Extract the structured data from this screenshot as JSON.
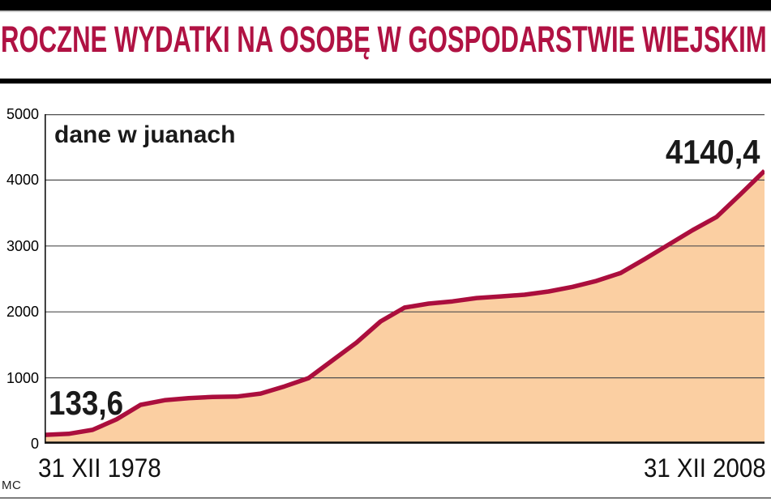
{
  "header": {
    "title": "ROCZNE WYDATKI NA OSOBĘ W GOSPODARSTWIE WIEJSKIM"
  },
  "chart": {
    "unit_note": "dane w juanach",
    "start_value_label": "133,6",
    "end_value_label": "4140,4",
    "x_start_label": "31 XII 1978",
    "x_end_label": "31 XII 2008",
    "credit": "MC"
  },
  "colors": {
    "title": "#b01243",
    "line": "#ab0e3d",
    "fill": "#fbcfa2",
    "grid": "#4f4f4f",
    "axis": "#111111"
  },
  "chart_data": {
    "type": "area",
    "title": "Roczne wydatki na osobę w gospodarstwie wiejskim",
    "unit": "juany",
    "xlabel": "",
    "ylabel": "",
    "x": [
      1978,
      1979,
      1980,
      1981,
      1982,
      1983,
      1984,
      1985,
      1986,
      1987,
      1988,
      1989,
      1990,
      1991,
      1992,
      1993,
      1994,
      1995,
      1996,
      1997,
      1998,
      1999,
      2000,
      2001,
      2002,
      2003,
      2004,
      2005,
      2006,
      2007,
      2008
    ],
    "values": [
      133.6,
      150,
      210,
      370,
      590,
      660,
      690,
      710,
      715,
      760,
      870,
      995,
      1265,
      1535,
      1855,
      2065,
      2125,
      2160,
      2210,
      2235,
      2260,
      2310,
      2380,
      2470,
      2590,
      2800,
      3020,
      3240,
      3440,
      3785,
      4140.4
    ],
    "ylim": [
      0,
      5000
    ],
    "yticks": [
      0,
      1000,
      2000,
      3000,
      4000,
      5000
    ],
    "xtick_labels": [
      "31 XII 1978",
      "31 XII 2008"
    ],
    "grid": true,
    "legend": "none",
    "annotations": [
      {
        "x": 1978,
        "label": "133,6"
      },
      {
        "x": 2008,
        "label": "4140,4"
      }
    ]
  }
}
